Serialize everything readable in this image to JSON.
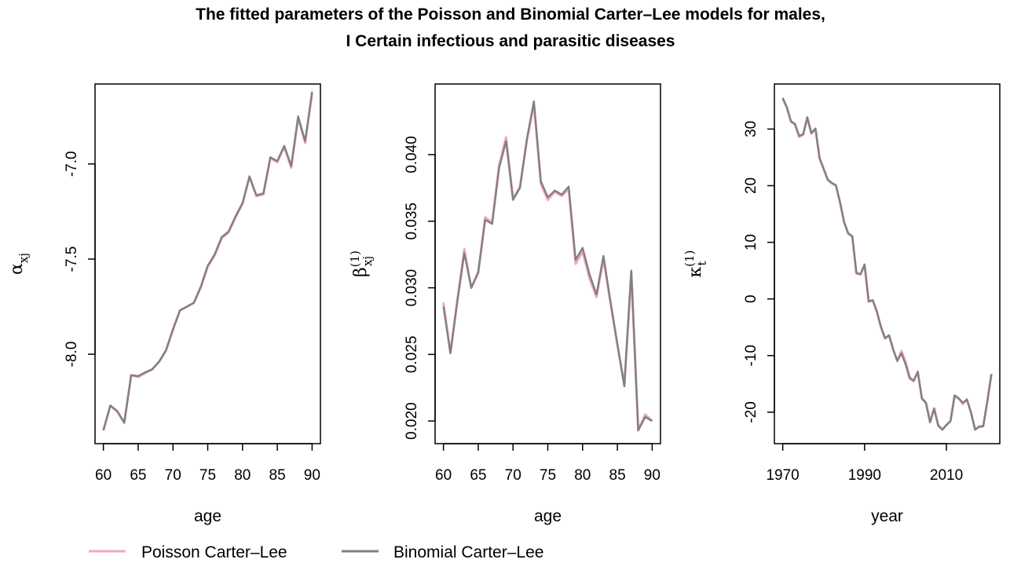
{
  "title": {
    "line1": "The fitted parameters of the Poisson and Binomial Carter–Lee models for males,",
    "line2": "I Certain infectious and parasitic diseases"
  },
  "legend": [
    {
      "label": "Poisson Carter–Lee",
      "color": "#f4a7b9"
    },
    {
      "label": "Binomial Carter–Lee",
      "color": "#808080"
    }
  ],
  "chart_data": [
    {
      "type": "line",
      "xlabel": "age",
      "ylabel": {
        "main": "α",
        "sub": "xj",
        "sup": ""
      },
      "xlim": [
        60,
        90
      ],
      "ylim": [
        -8.4,
        -6.65
      ],
      "xticks": [
        "60",
        "65",
        "70",
        "75",
        "80",
        "85",
        "90"
      ],
      "yticks": [
        "-8.0",
        "-7.5",
        "-7.0"
      ],
      "x": [
        60,
        61,
        62,
        63,
        64,
        65,
        66,
        67,
        68,
        69,
        70,
        71,
        72,
        73,
        74,
        75,
        76,
        77,
        78,
        79,
        80,
        81,
        82,
        83,
        84,
        85,
        86,
        87,
        88,
        89,
        90
      ],
      "series": [
        {
          "name": "Poisson Carter–Lee",
          "values": [
            -8.4,
            -8.27,
            -8.3,
            -8.36,
            -8.11,
            -8.12,
            -8.1,
            -8.08,
            -8.04,
            -7.98,
            -7.87,
            -7.77,
            -7.75,
            -7.73,
            -7.65,
            -7.54,
            -7.48,
            -7.39,
            -7.36,
            -7.28,
            -7.21,
            -7.07,
            -7.17,
            -7.16,
            -6.97,
            -6.99,
            -6.91,
            -7.02,
            -6.76,
            -6.89,
            -6.63
          ]
        },
        {
          "name": "Binomial Carter–Lee",
          "values": [
            -8.4,
            -8.27,
            -8.3,
            -8.36,
            -8.11,
            -8.115,
            -8.095,
            -8.08,
            -8.04,
            -7.98,
            -7.87,
            -7.77,
            -7.75,
            -7.73,
            -7.645,
            -7.535,
            -7.475,
            -7.385,
            -7.355,
            -7.275,
            -7.205,
            -7.065,
            -7.165,
            -7.155,
            -6.965,
            -6.985,
            -6.905,
            -7.01,
            -6.75,
            -6.88,
            -6.62
          ]
        }
      ]
    },
    {
      "type": "line",
      "xlabel": "age",
      "ylabel": {
        "main": "β",
        "sub": "xj",
        "sup": "(1)"
      },
      "xlim": [
        60,
        90
      ],
      "ylim": [
        0.0193,
        0.0443
      ],
      "xticks": [
        "60",
        "65",
        "70",
        "75",
        "80",
        "85",
        "90"
      ],
      "yticks": [
        "0.020",
        "0.025",
        "0.030",
        "0.035",
        "0.040"
      ],
      "x": [
        60,
        61,
        62,
        63,
        64,
        65,
        66,
        67,
        68,
        69,
        70,
        71,
        72,
        73,
        74,
        75,
        76,
        77,
        78,
        79,
        80,
        81,
        82,
        83,
        84,
        85,
        86,
        87,
        88,
        89,
        90
      ],
      "series": [
        {
          "name": "Poisson Carter–Lee",
          "values": [
            0.0289,
            0.0251,
            0.0291,
            0.0329,
            0.03,
            0.0311,
            0.0353,
            0.0349,
            0.0392,
            0.0413,
            0.0367,
            0.0376,
            0.0411,
            0.0438,
            0.0378,
            0.0366,
            0.0372,
            0.0369,
            0.0374,
            0.0318,
            0.0327,
            0.0307,
            0.0293,
            0.0322,
            0.0289,
            0.0257,
            0.0227,
            0.0311,
            0.0193,
            0.0205,
            0.02
          ]
        },
        {
          "name": "Binomial Carter–Lee",
          "values": [
            0.0286,
            0.0251,
            0.029,
            0.0326,
            0.03,
            0.0312,
            0.0351,
            0.0348,
            0.039,
            0.041,
            0.0366,
            0.0375,
            0.0412,
            0.044,
            0.038,
            0.0368,
            0.0373,
            0.037,
            0.0376,
            0.0321,
            0.033,
            0.031,
            0.0295,
            0.0324,
            0.029,
            0.0258,
            0.0226,
            0.0313,
            0.0193,
            0.0203,
            0.02
          ]
        }
      ]
    },
    {
      "type": "line",
      "xlabel": "year",
      "ylabel": {
        "main": "κ",
        "sub": "t",
        "sup": "(1)"
      },
      "xlim": [
        1970,
        2021
      ],
      "ylim": [
        -23.2,
        35.6
      ],
      "xticks": [
        "1970",
        "1990",
        "2010"
      ],
      "yticks": [
        "-20",
        "-10",
        "0",
        "10",
        "20",
        "30"
      ],
      "x": [
        1970,
        1971,
        1972,
        1973,
        1974,
        1975,
        1976,
        1977,
        1978,
        1979,
        1980,
        1981,
        1982,
        1983,
        1984,
        1985,
        1986,
        1987,
        1988,
        1989,
        1990,
        1991,
        1992,
        1993,
        1994,
        1995,
        1996,
        1997,
        1998,
        1999,
        2000,
        2001,
        2002,
        2003,
        2004,
        2005,
        2006,
        2007,
        2008,
        2009,
        2010,
        2011,
        2012,
        2013,
        2014,
        2015,
        2016,
        2017,
        2018,
        2019,
        2020,
        2021
      ],
      "series": [
        {
          "name": "Poisson Carter–Lee",
          "values": [
            35.3,
            33.8,
            31.3,
            30.8,
            28.6,
            29.0,
            32.0,
            29.2,
            30.0,
            24.8,
            22.9,
            21.0,
            20.4,
            20.0,
            17.0,
            13.5,
            11.5,
            11.0,
            4.5,
            4.3,
            6.0,
            -0.5,
            -0.3,
            -2.3,
            -5.0,
            -7.0,
            -6.5,
            -9.0,
            -11.0,
            -9.2,
            -11.0,
            -13.8,
            -14.4,
            -12.8,
            -17.5,
            -18.3,
            -21.7,
            -19.3,
            -22.3,
            -23.0,
            -22.2,
            -21.5,
            -17.0,
            -17.5,
            -18.6,
            -17.7,
            -20.0,
            -23.0,
            -22.5,
            -22.4,
            -18.0,
            -13.2
          ]
        },
        {
          "name": "Binomial Carter–Lee",
          "values": [
            35.5,
            33.9,
            31.4,
            30.9,
            28.8,
            29.1,
            32.1,
            29.3,
            30.1,
            24.9,
            23.0,
            21.1,
            20.5,
            20.1,
            17.1,
            13.6,
            11.6,
            11.1,
            4.6,
            4.4,
            6.1,
            -0.4,
            -0.2,
            -2.2,
            -4.9,
            -6.9,
            -6.4,
            -8.9,
            -10.9,
            -9.6,
            -11.5,
            -14.0,
            -14.5,
            -12.9,
            -17.6,
            -18.4,
            -21.8,
            -19.4,
            -22.4,
            -23.1,
            -22.3,
            -21.6,
            -17.1,
            -17.6,
            -18.3,
            -17.8,
            -20.1,
            -23.1,
            -22.6,
            -22.5,
            -18.1,
            -13.3
          ]
        }
      ]
    }
  ]
}
